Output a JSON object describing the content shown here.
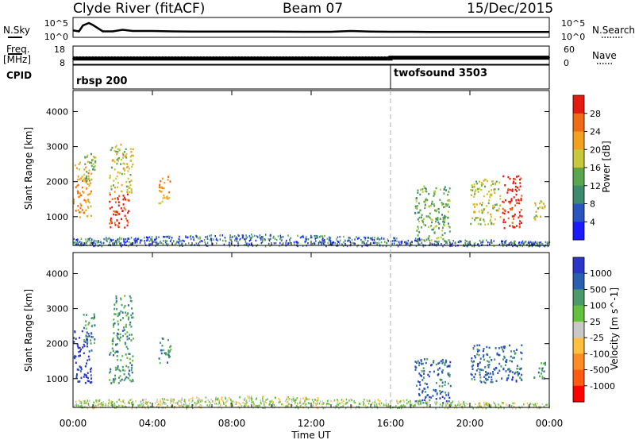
{
  "header": {
    "station": "Clyde River (fitACF)",
    "beam": "Beam 07",
    "date": "15/Dec/2015"
  },
  "labels": {
    "nsky": "N.Sky",
    "freq": "Freq.",
    "freq_unit": "[MHz]",
    "cpid": "CPID",
    "nsearch": "N.Search",
    "nave": "Nave",
    "slant_range": "Slant Range [km]",
    "time_ut": "Time UT",
    "power_label": "Power [dB]",
    "velocity_label": "Velocity [m s^-1]"
  },
  "colors": {
    "power": [
      "#1a1aff",
      "#2a55c0",
      "#3e8a6e",
      "#5aa64e",
      "#c8c83c",
      "#f2a020",
      "#ee6a14",
      "#e41a10"
    ],
    "velocity": [
      "#ff0000",
      "#ff5a10",
      "#ff8c20",
      "#ffc040",
      "#c8c8c8",
      "#66c040",
      "#4a9a6a",
      "#2a5fb0",
      "#2a36c8"
    ]
  },
  "chart_data": [
    {
      "type": "line",
      "title": "N.Sky / N.Search",
      "ylabel": "N.Sky",
      "y2label": "N.Search",
      "left_ticks": [
        "10^5",
        "10^0"
      ],
      "right_ticks": [
        "10^5",
        "10^0"
      ],
      "x_range": [
        "00:00",
        "24:00"
      ],
      "series": [
        {
          "name": "N.Sky",
          "x": [
            0,
            0.3,
            0.5,
            0.8,
            1,
            1.5,
            2,
            2.5,
            3,
            4,
            5,
            6,
            8,
            10,
            12,
            13,
            14,
            15,
            16,
            17,
            18,
            20,
            22,
            24
          ],
          "values": [
            0.35,
            0.3,
            0.6,
            0.72,
            0.62,
            0.3,
            0.3,
            0.38,
            0.32,
            0.32,
            0.3,
            0.29,
            0.29,
            0.29,
            0.28,
            0.28,
            0.32,
            0.29,
            0.28,
            0.28,
            0.27,
            0.27,
            0.27,
            0.27
          ]
        }
      ]
    },
    {
      "type": "scatter",
      "title": "Freq / Nave",
      "ylabel": "[MHz]",
      "left_ticks": [
        18,
        8
      ],
      "right_ticks": [
        60,
        0
      ],
      "series": [
        {
          "name": "Freq",
          "x": [
            0,
            4,
            8,
            12,
            16,
            20,
            24
          ],
          "values": [
            12,
            12,
            12,
            12,
            12,
            12,
            12
          ]
        },
        {
          "name": "Nave",
          "x": [
            0,
            16,
            16,
            24
          ],
          "values": [
            19,
            19,
            22,
            22
          ]
        }
      ]
    },
    {
      "type": "table",
      "title": "CPID",
      "segments": [
        {
          "start": "00:00",
          "end": "16:00",
          "label": "rbsp 200"
        },
        {
          "start": "16:00",
          "end": "24:00",
          "label": "twofsound 3503"
        }
      ]
    },
    {
      "type": "heatmap",
      "quantity": "Power",
      "ylabel": "Slant Range [km]",
      "ylim": [
        180,
        4600
      ],
      "yticks": [
        1000,
        2000,
        3000,
        4000
      ],
      "colorbar_ticks": [
        4,
        8,
        12,
        16,
        20,
        24,
        28
      ],
      "colorbar_label": "Power [dB]",
      "patches": [
        {
          "t": [
            0.0,
            0.9
          ],
          "r": [
            1000,
            2600
          ],
          "level": 5
        },
        {
          "t": [
            0.5,
            1.1
          ],
          "r": [
            2000,
            2900
          ],
          "level": 3
        },
        {
          "t": [
            1.8,
            2.8
          ],
          "r": [
            700,
            1700
          ],
          "level": 7
        },
        {
          "t": [
            1.8,
            3.0
          ],
          "r": [
            1700,
            3100
          ],
          "level": 4
        },
        {
          "t": [
            4.3,
            4.9
          ],
          "r": [
            1400,
            2200
          ],
          "level": 5
        },
        {
          "t": [
            17.2,
            19.0
          ],
          "r": [
            300,
            1900
          ],
          "level": 3
        },
        {
          "t": [
            20.0,
            21.5
          ],
          "r": [
            800,
            2100
          ],
          "level": 4
        },
        {
          "t": [
            21.6,
            22.6
          ],
          "r": [
            700,
            2200
          ],
          "level": 7
        },
        {
          "t": [
            23.2,
            23.8
          ],
          "r": [
            900,
            1500
          ],
          "level": 4
        }
      ]
    },
    {
      "type": "heatmap",
      "quantity": "Velocity",
      "ylabel": "Slant Range [km]",
      "xlabel": "Time UT",
      "xticks": [
        "00:00",
        "04:00",
        "08:00",
        "12:00",
        "16:00",
        "20:00",
        "00:00"
      ],
      "ylim": [
        180,
        4600
      ],
      "yticks": [
        1000,
        2000,
        3000,
        4000
      ],
      "colorbar_ticks": [
        1000,
        500,
        100,
        25,
        -25,
        -100,
        -500,
        -1000
      ],
      "colorbar_label": "Velocity [m s^-1]",
      "patches": [
        {
          "t": [
            0.0,
            0.9
          ],
          "r": [
            900,
            2400
          ],
          "level": 8
        },
        {
          "t": [
            0.5,
            1.1
          ],
          "r": [
            2000,
            2900
          ],
          "level": 6
        },
        {
          "t": [
            1.8,
            3.0
          ],
          "r": [
            900,
            2200
          ],
          "level": 6
        },
        {
          "t": [
            2.0,
            3.0
          ],
          "r": [
            2200,
            3400
          ],
          "level": 6
        },
        {
          "t": [
            4.3,
            4.9
          ],
          "r": [
            1400,
            2200
          ],
          "level": 6
        },
        {
          "t": [
            17.2,
            19.0
          ],
          "r": [
            300,
            1600
          ],
          "level": 7
        },
        {
          "t": [
            20.0,
            22.6
          ],
          "r": [
            900,
            2000
          ],
          "level": 7
        },
        {
          "t": [
            23.2,
            23.8
          ],
          "r": [
            1000,
            1500
          ],
          "level": 6
        }
      ]
    }
  ]
}
